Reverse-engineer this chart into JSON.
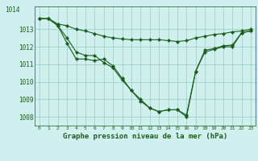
{
  "title": "Graphe pression niveau de la mer (hPa)",
  "bg_color": "#cff0ee",
  "grid_color": "#99ccbb",
  "line_color": "#1a5c1a",
  "hours": [
    0,
    1,
    2,
    3,
    4,
    5,
    6,
    7,
    8,
    9,
    10,
    11,
    12,
    13,
    14,
    15,
    16,
    17,
    18,
    19,
    20,
    21,
    22,
    23
  ],
  "series1": [
    1013.6,
    1013.6,
    1013.3,
    1013.2,
    1013.0,
    1012.9,
    1012.75,
    1012.6,
    1012.5,
    1012.45,
    1012.4,
    1012.4,
    1012.4,
    1012.4,
    1012.35,
    1012.3,
    1012.35,
    1012.5,
    1012.6,
    1012.7,
    1012.75,
    1012.85,
    1012.9,
    1013.0
  ],
  "series2": [
    1013.6,
    1013.6,
    1013.2,
    1012.2,
    1011.3,
    1011.3,
    1011.2,
    1011.3,
    1010.9,
    1010.2,
    1009.5,
    1009.0,
    1008.5,
    1008.3,
    1008.4,
    1008.4,
    1008.0,
    1010.6,
    1011.7,
    1011.85,
    1012.0,
    1012.0,
    1012.8,
    1012.9
  ],
  "series3": [
    1013.6,
    1013.6,
    1013.2,
    1012.5,
    1011.7,
    1011.5,
    1011.5,
    1011.1,
    1010.8,
    1010.1,
    1009.5,
    1008.9,
    1008.5,
    1008.3,
    1008.4,
    1008.4,
    1008.1,
    1010.6,
    1011.8,
    1011.9,
    1012.05,
    1012.1,
    1012.8,
    1012.9
  ],
  "ylim_min": 1007.5,
  "ylim_max": 1014.3,
  "yticks": [
    1008,
    1009,
    1010,
    1011,
    1012,
    1013
  ],
  "ytop_label": "1014",
  "marker_size": 2.2,
  "line_width": 0.8
}
